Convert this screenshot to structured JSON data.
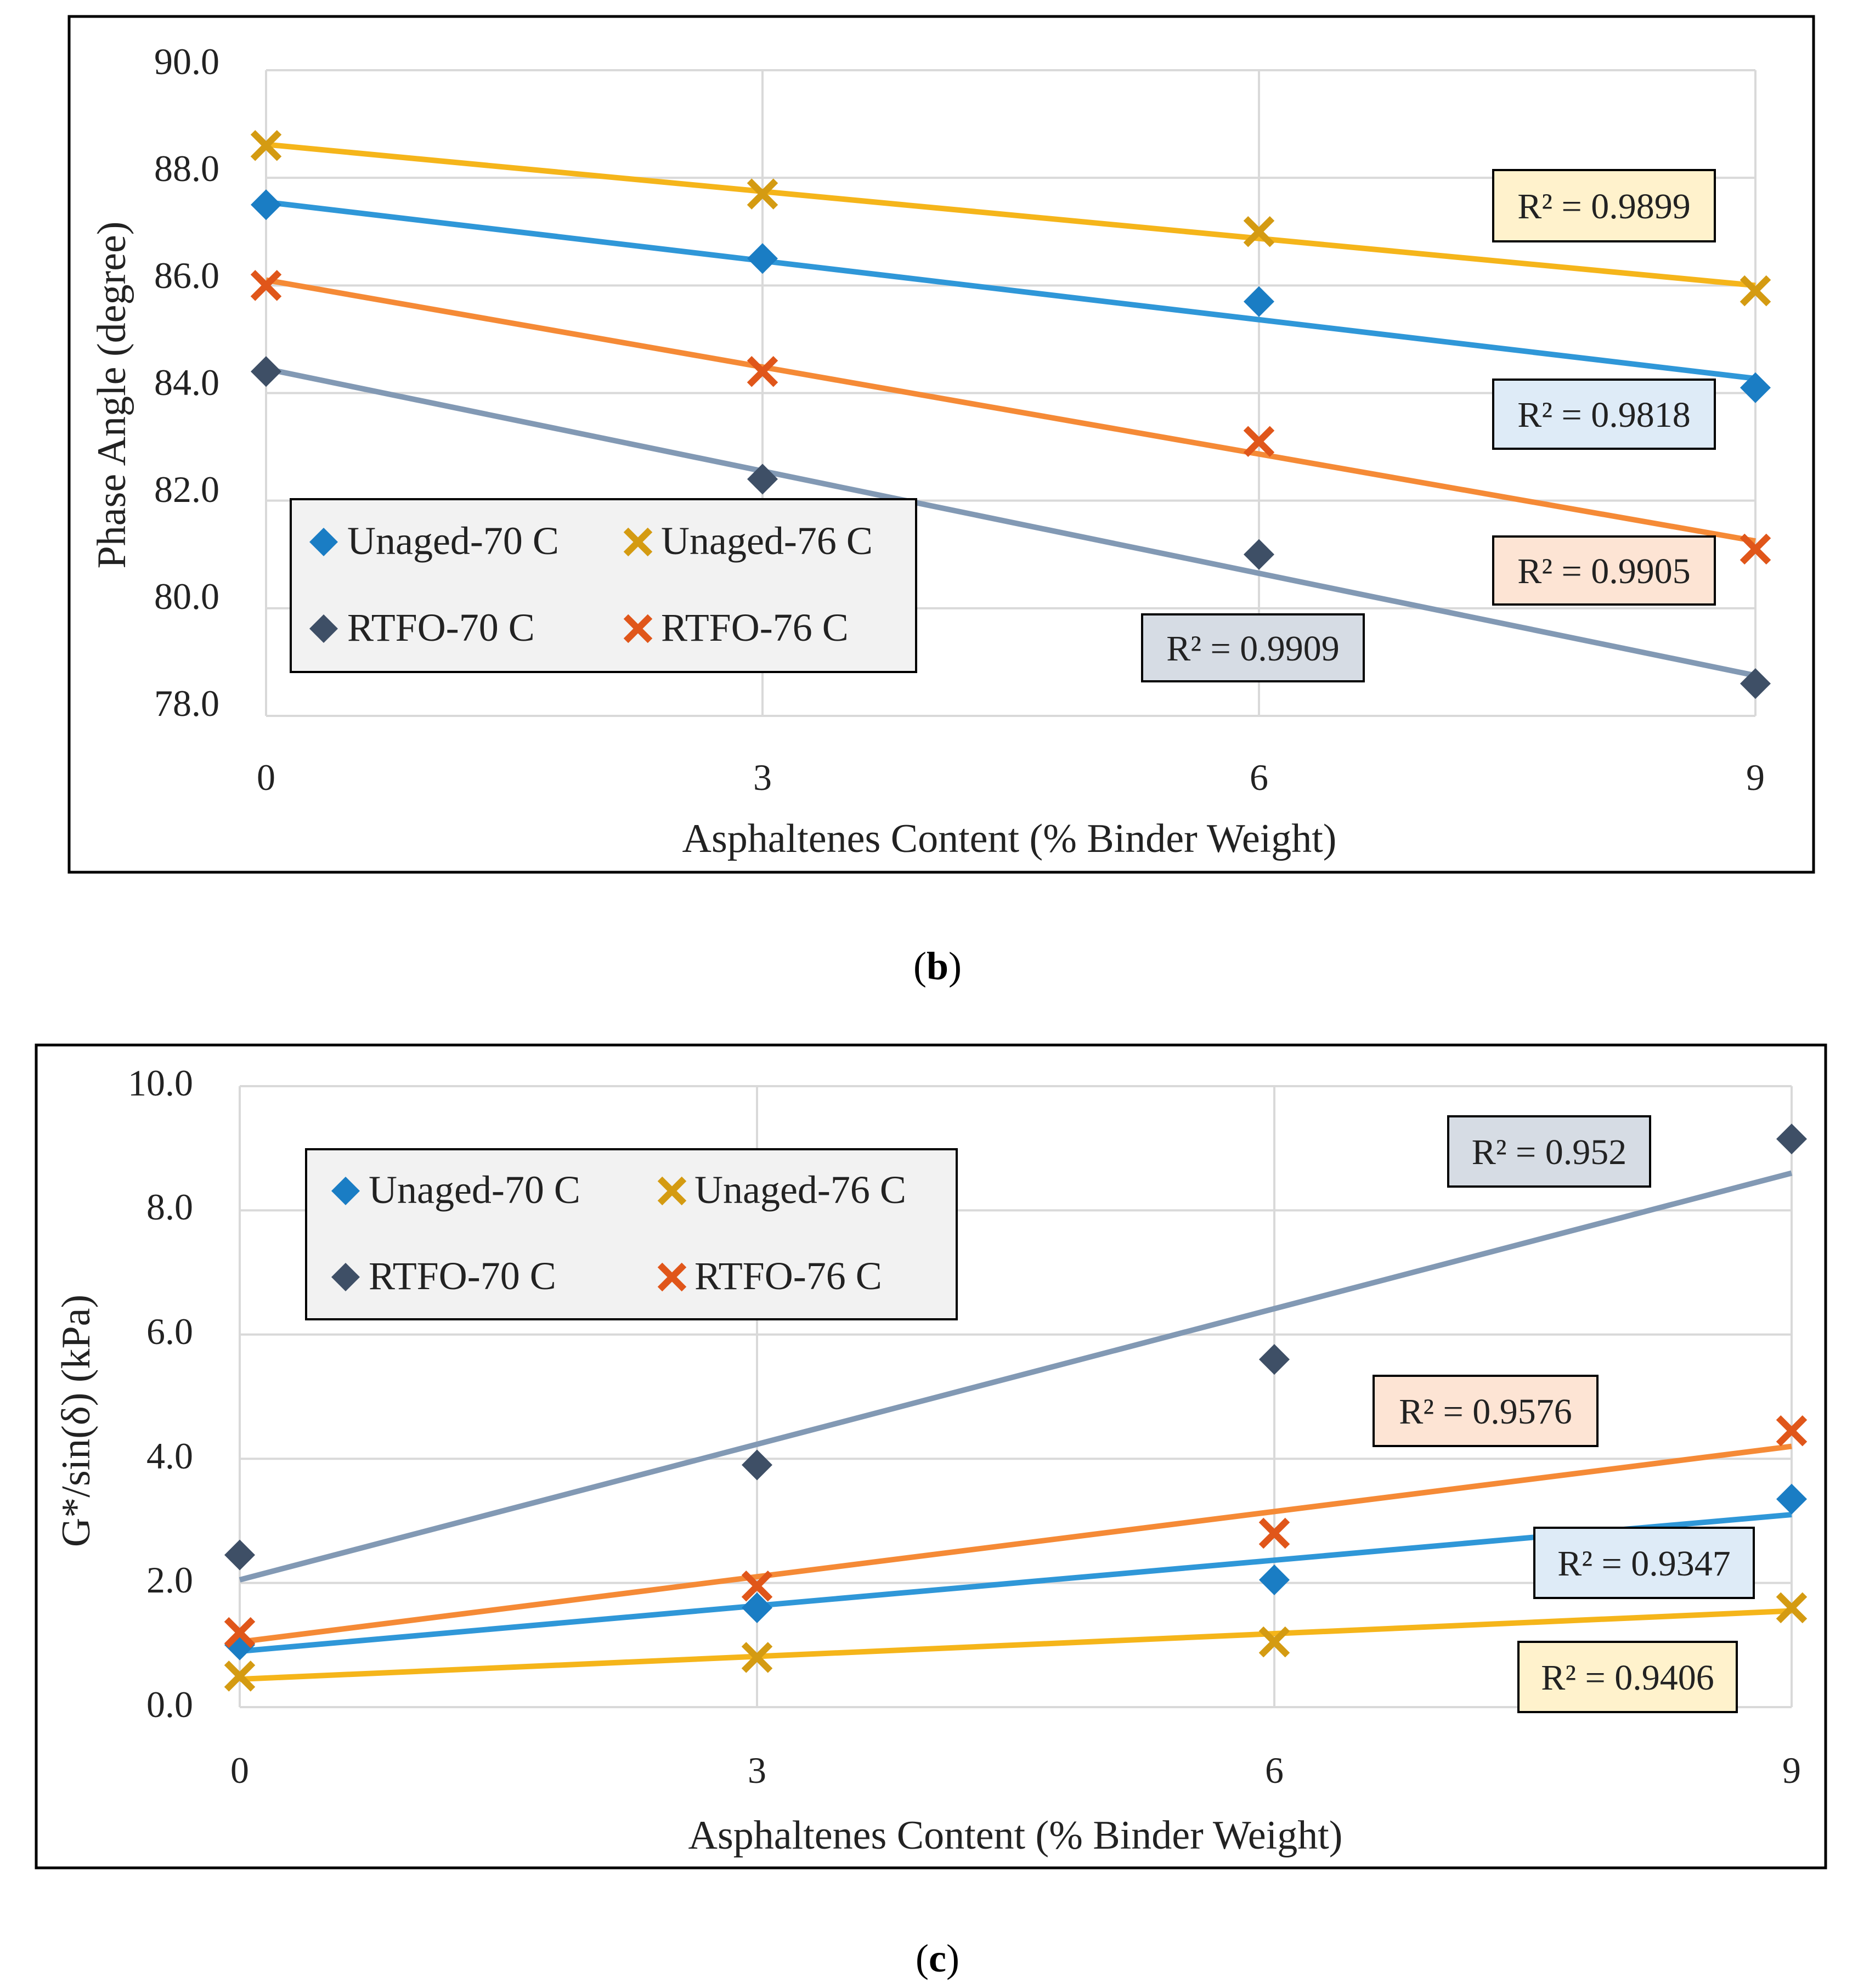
{
  "chart_data": [
    {
      "id": "b",
      "type": "scatter",
      "caption_letter": "b",
      "xlabel": "Asphaltenes Content (% Binder Weight)",
      "ylabel": "Phase Angle (degree)",
      "xlim": [
        0,
        9
      ],
      "ylim": [
        78,
        90
      ],
      "xticks": [
        "0",
        "3",
        "6",
        "9"
      ],
      "yticks": [
        "78.0",
        "80.0",
        "82.0",
        "84.0",
        "86.0",
        "88.0",
        "90.0"
      ],
      "grid": true,
      "legend_position": "bottom-left",
      "series": [
        {
          "name": "Unaged-70 C",
          "marker": "diamond",
          "marker_color": "#1a7dc4",
          "line_color": "#2f97d8",
          "x": [
            0,
            3,
            6,
            9
          ],
          "y": [
            87.5,
            86.5,
            85.7,
            84.1
          ],
          "fit": [
            87.55,
            84.27
          ],
          "r2": "R² = 0.9818",
          "r2_fill": "#deebf7"
        },
        {
          "name": "Unaged-76 C",
          "marker": "x",
          "marker_color": "#d49b12",
          "line_color": "#f5b51a",
          "x": [
            0,
            3,
            6,
            9
          ],
          "y": [
            88.6,
            87.7,
            87.0,
            85.9
          ],
          "fit": [
            88.62,
            86.0
          ],
          "r2": "R² = 0.9899",
          "r2_fill": "#fff2cc"
        },
        {
          "name": "RTFO-70 C",
          "marker": "diamond",
          "marker_color": "#3e4f66",
          "line_color": "#8299b4",
          "x": [
            0,
            3,
            6,
            9
          ],
          "y": [
            84.4,
            82.4,
            81.0,
            78.6
          ],
          "fit": [
            84.45,
            78.75
          ],
          "r2": "R² = 0.9909",
          "r2_fill": "#d6dce4"
        },
        {
          "name": "RTFO-76 C",
          "marker": "x",
          "marker_color": "#e0561a",
          "line_color": "#f58a36",
          "x": [
            0,
            3,
            6,
            9
          ],
          "y": [
            86.0,
            84.4,
            83.1,
            81.1
          ],
          "fit": [
            86.1,
            81.25
          ],
          "r2": "R² = 0.9905",
          "r2_fill": "#fde4d4"
        }
      ]
    },
    {
      "id": "c",
      "type": "scatter",
      "caption_letter": "c",
      "xlabel": "Asphaltenes Content (% Binder Weight)",
      "ylabel": "G*/sin(δ) (kPa)",
      "xlim": [
        0,
        9
      ],
      "ylim": [
        0,
        10
      ],
      "xticks": [
        "0",
        "3",
        "6",
        "9"
      ],
      "yticks": [
        "0.0",
        "2.0",
        "4.0",
        "6.0",
        "8.0",
        "10.0"
      ],
      "grid": true,
      "legend_position": "top-left",
      "series": [
        {
          "name": "Unaged-70 C",
          "marker": "diamond",
          "marker_color": "#1a7dc4",
          "line_color": "#2f97d8",
          "x": [
            0,
            3,
            6,
            9
          ],
          "y": [
            1.0,
            1.6,
            2.05,
            3.35
          ],
          "fit": [
            0.9,
            3.1
          ],
          "r2": "R² = 0.9347",
          "r2_fill": "#deebf7"
        },
        {
          "name": "Unaged-76 C",
          "marker": "x",
          "marker_color": "#d49b12",
          "line_color": "#f5b51a",
          "x": [
            0,
            3,
            6,
            9
          ],
          "y": [
            0.5,
            0.8,
            1.05,
            1.6
          ],
          "fit": [
            0.45,
            1.55
          ],
          "r2": "R² = 0.9406",
          "r2_fill": "#fff2cc"
        },
        {
          "name": "RTFO-70 C",
          "marker": "diamond",
          "marker_color": "#3e4f66",
          "line_color": "#8299b4",
          "x": [
            0,
            3,
            6,
            9
          ],
          "y": [
            2.45,
            3.9,
            5.6,
            9.15
          ],
          "fit": [
            2.05,
            8.6
          ],
          "r2": "R² = 0.952",
          "r2_fill": "#d6dce4"
        },
        {
          "name": "RTFO-76 C",
          "marker": "x",
          "marker_color": "#e0561a",
          "line_color": "#f58a36",
          "x": [
            0,
            3,
            6,
            9
          ],
          "y": [
            1.2,
            1.95,
            2.8,
            4.45
          ],
          "fit": [
            1.05,
            4.2
          ],
          "r2": "R² = 0.9576",
          "r2_fill": "#fde4d4"
        }
      ]
    }
  ]
}
